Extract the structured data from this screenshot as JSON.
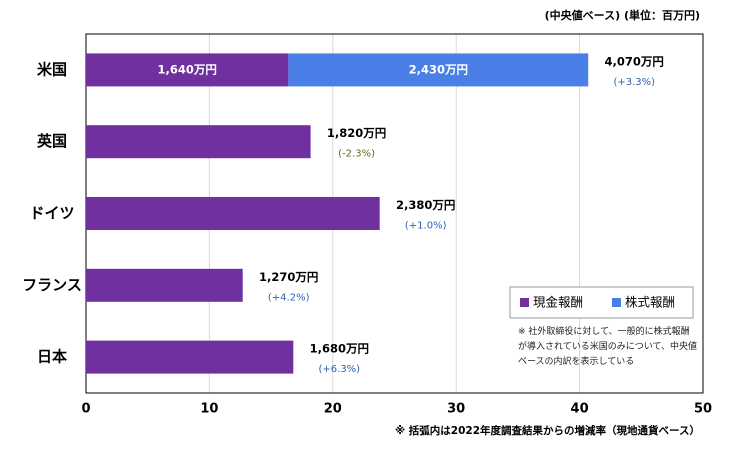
{
  "chart_data": {
    "type": "bar",
    "orientation": "horizontal",
    "stacked": true,
    "unit_note": "(中央値ベース) (単位：百万円)",
    "categories": [
      "米国",
      "英国",
      "ドイツ",
      "フランス",
      "日本"
    ],
    "series": [
      {
        "name": "現金報酬",
        "color": "#7030a0",
        "values": [
          16.4,
          18.2,
          23.8,
          12.7,
          16.8
        ],
        "value_labels": [
          "1,640万円",
          "1,820万円",
          "2,380万円",
          "1,270万円",
          "1,680万円"
        ]
      },
      {
        "name": "株式報酬",
        "color": "#4a7fe8",
        "values": [
          24.3,
          null,
          null,
          null,
          null
        ],
        "value_labels": [
          "2,430万円",
          null,
          null,
          null,
          null
        ]
      }
    ],
    "total_label": "4,070万円",
    "change_labels": [
      "(+3.3%)",
      "(-2.3%)",
      "(+1.0%)",
      "(+4.2%)",
      "(+6.3%)"
    ],
    "xlim": [
      0,
      50
    ],
    "xticks": [
      0,
      10,
      20,
      30,
      40,
      50
    ],
    "grid": true,
    "legend_position": "lower right",
    "legend_note": "※ 社外取締役に対して、一般的に株式報酬が導入されている米国のみについて、中央値ベースの内訳を表示している",
    "footnote": "※ 括弧内は2022年度調査結果からの増減率（現地通貨ベース）"
  }
}
